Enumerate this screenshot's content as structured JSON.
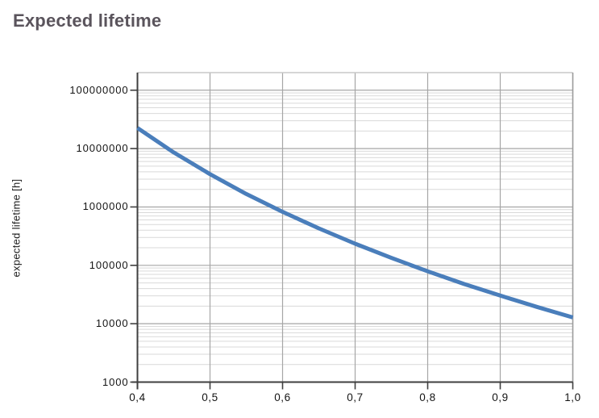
{
  "title": "Expected lifetime",
  "colors": {
    "title": "#5a545c",
    "curve": "#4a7ebb",
    "axis": "#3f3f3f",
    "grid_major": "#a6a6a6",
    "grid_minor": "#d9d9d9",
    "border_top": "#c9c9c9",
    "border_right": "#9b9b9b",
    "tick_label": "#141414"
  },
  "chart_data": {
    "type": "line",
    "title": "Expected lifetime",
    "xlabel": "",
    "ylabel": "expected lifetime [h]",
    "y_scale": "log",
    "xlim": [
      0.4,
      1.0
    ],
    "ylim": [
      1000,
      200000000
    ],
    "grid": "major+minor",
    "legend": "none",
    "x_ticks": [
      {
        "value": 0.4,
        "label": "0,4"
      },
      {
        "value": 0.5,
        "label": "0,5"
      },
      {
        "value": 0.6,
        "label": "0,6"
      },
      {
        "value": 0.7,
        "label": "0,7"
      },
      {
        "value": 0.8,
        "label": "0,8"
      },
      {
        "value": 0.9,
        "label": "0,9"
      },
      {
        "value": 1.0,
        "label": "1,0"
      }
    ],
    "y_ticks": [
      {
        "value": 1000,
        "label": "1000"
      },
      {
        "value": 10000,
        "label": "10000"
      },
      {
        "value": 100000,
        "label": "100000"
      },
      {
        "value": 1000000,
        "label": "1000000"
      },
      {
        "value": 10000000,
        "label": "10000000"
      },
      {
        "value": 100000000,
        "label": "100000000"
      }
    ],
    "series": [
      {
        "name": "expected lifetime",
        "x": [
          0.4,
          0.45,
          0.5,
          0.55,
          0.6,
          0.65,
          0.7,
          0.75,
          0.8,
          0.85,
          0.9,
          0.95,
          1.0
        ],
        "y": [
          22500000,
          8600000,
          3650000,
          1670000,
          825000,
          430000,
          235000,
          134000,
          79000,
          48000,
          30300,
          19500,
          12800
        ]
      }
    ]
  }
}
